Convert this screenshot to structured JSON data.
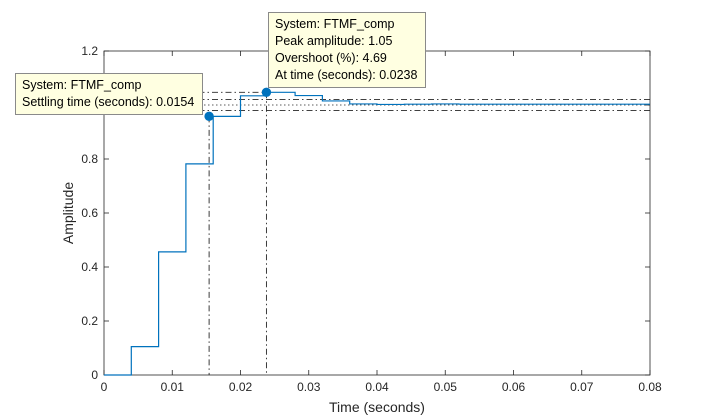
{
  "chart_data": {
    "type": "line",
    "xlabel": "Time (seconds)",
    "ylabel": "Amplitude",
    "xlim": [
      0,
      0.08
    ],
    "ylim": [
      0,
      1.2
    ],
    "x_ticks": [
      0,
      0.01,
      0.02,
      0.03,
      0.04,
      0.05,
      0.06,
      0.07,
      0.08
    ],
    "x_tick_labels": [
      "0",
      "0.01",
      "0.02",
      "0.03",
      "0.04",
      "0.05",
      "0.06",
      "0.07",
      "0.08"
    ],
    "y_ticks": [
      0,
      0.2,
      0.4,
      0.6,
      0.8,
      1,
      1.2
    ],
    "y_tick_labels": [
      "0",
      "0.2",
      "0.4",
      "0.6",
      "0.8",
      "1",
      "1.2"
    ],
    "grid": false,
    "series": [
      {
        "style": "step",
        "color": "#0072bd",
        "x": [
          0,
          0.004,
          0.008,
          0.012,
          0.016,
          0.02,
          0.024,
          0.028,
          0.032,
          0.036,
          0.04,
          0.044,
          0.048,
          0.052,
          0.08
        ],
        "y": [
          0,
          0.105,
          0.456,
          0.782,
          0.958,
          1.034,
          1.047,
          1.035,
          1.015,
          1.004,
          1.002,
          1.003,
          1.004,
          1.003,
          1.003
        ]
      }
    ],
    "reference_lines": {
      "final_value": 1.0,
      "settling_band": [
        0.98,
        1.02
      ]
    },
    "markers": [
      {
        "name": "settling-time",
        "x": 0.0154,
        "y": 0.958,
        "lines": [
          "System: FTMF_comp",
          "Settling time (seconds): 0.0154"
        ]
      },
      {
        "name": "peak-response",
        "x": 0.0238,
        "y": 1.047,
        "lines": [
          "System: FTMF_comp",
          "Peak amplitude: 1.05",
          "Overshoot (%): 4.69",
          "At time (seconds): 0.0238"
        ]
      }
    ]
  }
}
